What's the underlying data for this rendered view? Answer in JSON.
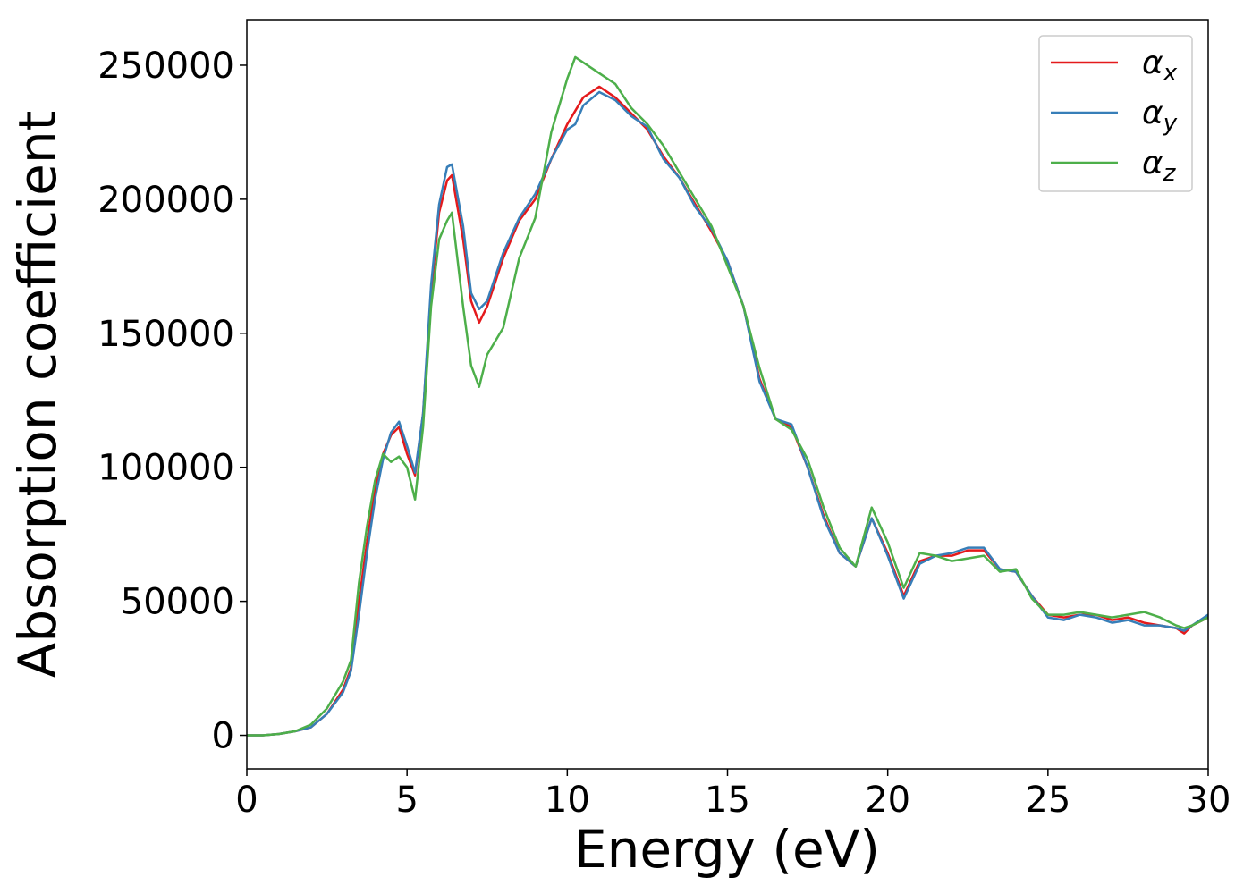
{
  "chart_data": {
    "type": "line",
    "xlabel": "Energy (eV)",
    "ylabel": "Absorption coefficient",
    "x": [
      0,
      0.5,
      1,
      1.5,
      2,
      2.5,
      3,
      3.25,
      3.5,
      3.75,
      4,
      4.25,
      4.5,
      4.75,
      5,
      5.25,
      5.5,
      5.75,
      6,
      6.25,
      6.4,
      6.75,
      7,
      7.25,
      7.5,
      8,
      8.5,
      9,
      9.5,
      10,
      10.25,
      10.5,
      11,
      11.5,
      12,
      12.5,
      13,
      13.5,
      14,
      14.5,
      15,
      15.5,
      16,
      16.5,
      17,
      17.5,
      18,
      18.5,
      19,
      19.5,
      20,
      20.5,
      21,
      21.5,
      22,
      22.5,
      23,
      23.5,
      24,
      24.5,
      25,
      25.5,
      26,
      26.5,
      27,
      27.5,
      28,
      28.5,
      29,
      29.25,
      29.5,
      30
    ],
    "series": [
      {
        "name": "αx",
        "color": "#e41a1c",
        "values": [
          0,
          0,
          500,
          1500,
          3000,
          8000,
          17000,
          25000,
          50000,
          72000,
          92000,
          105000,
          112000,
          115000,
          105000,
          97000,
          120000,
          165000,
          195000,
          207000,
          209000,
          185000,
          162000,
          154000,
          160000,
          178000,
          192000,
          200000,
          215000,
          228000,
          233000,
          238000,
          242000,
          238000,
          232000,
          226000,
          216000,
          208000,
          198000,
          188000,
          177000,
          160000,
          133000,
          118000,
          115000,
          100000,
          82000,
          68000,
          63000,
          81000,
          68000,
          52000,
          65000,
          67000,
          67000,
          69000,
          69000,
          62000,
          61000,
          52000,
          45000,
          44000,
          45000,
          45000,
          43000,
          44000,
          42000,
          41000,
          40000,
          38000,
          41000,
          44000
        ]
      },
      {
        "name": "αy",
        "color": "#377eb8",
        "values": [
          0,
          0,
          500,
          1500,
          3000,
          8000,
          16000,
          24000,
          45000,
          68000,
          88000,
          103000,
          113000,
          117000,
          108000,
          98000,
          120000,
          168000,
          198000,
          212000,
          213000,
          190000,
          165000,
          159000,
          162000,
          180000,
          193000,
          202000,
          215000,
          226000,
          228000,
          235000,
          240000,
          237000,
          231000,
          227000,
          215000,
          208000,
          197000,
          189000,
          177000,
          160000,
          132000,
          118000,
          116000,
          100000,
          81000,
          68000,
          63000,
          81000,
          67000,
          51000,
          64000,
          67000,
          68000,
          70000,
          70000,
          62000,
          61000,
          52000,
          44000,
          43000,
          45000,
          44000,
          42000,
          43000,
          41000,
          41000,
          40000,
          39000,
          41000,
          45000
        ]
      },
      {
        "name": "αz",
        "color": "#4daf4a",
        "values": [
          0,
          0,
          500,
          1500,
          4000,
          10000,
          20000,
          28000,
          57000,
          78000,
          95000,
          105000,
          102000,
          104000,
          100000,
          88000,
          115000,
          160000,
          185000,
          192000,
          195000,
          160000,
          138000,
          130000,
          142000,
          152000,
          178000,
          193000,
          225000,
          245000,
          253000,
          251000,
          247000,
          243000,
          234000,
          228000,
          220000,
          210000,
          200000,
          190000,
          175000,
          160000,
          137000,
          118000,
          114000,
          103000,
          85000,
          70000,
          63000,
          85000,
          72000,
          55000,
          68000,
          67000,
          65000,
          66000,
          67000,
          61000,
          62000,
          51000,
          45000,
          45000,
          46000,
          45000,
          44000,
          45000,
          46000,
          44000,
          41000,
          40000,
          41000,
          44000
        ]
      }
    ],
    "xlim": [
      0,
      30
    ],
    "xticks": [
      0,
      5,
      10,
      15,
      20,
      25,
      30
    ],
    "ylim": [
      -12500,
      267000
    ],
    "yticks": [
      0,
      50000,
      100000,
      150000,
      200000,
      250000
    ],
    "legend": "upper right"
  }
}
